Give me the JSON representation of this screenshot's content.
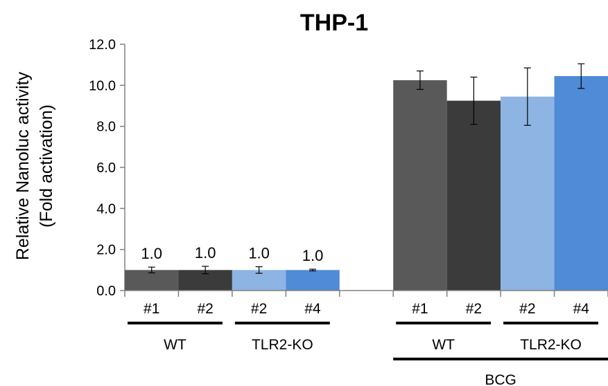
{
  "chart_data": {
    "type": "bar",
    "title": "THP-1",
    "ylabel_lines": [
      "Relative Nanoluc activity",
      "(Fold activation)"
    ],
    "ylim": [
      0,
      12
    ],
    "yticks": [
      "0.0",
      "2.0",
      "4.0",
      "6.0",
      "8.0",
      "10.0",
      "12.0"
    ],
    "grid": false,
    "legend": "none",
    "bars": [
      {
        "label": "#1",
        "value": 1.0,
        "error": 0.14,
        "color": "#595959",
        "data_label": "1.0"
      },
      {
        "label": "#2",
        "value": 1.0,
        "error": 0.18,
        "color": "#3b3b3b",
        "data_label": "1.0"
      },
      {
        "label": "#2",
        "value": 1.0,
        "error": 0.16,
        "color": "#8db4e2",
        "data_label": "1.0"
      },
      {
        "label": "#4",
        "value": 1.0,
        "error": 0.04,
        "color": "#4f8bd6",
        "data_label": "1.0"
      },
      {
        "label": "#1",
        "value": 10.25,
        "error": 0.45,
        "color": "#595959",
        "data_label": ""
      },
      {
        "label": "#2",
        "value": 9.25,
        "error": 1.15,
        "color": "#3b3b3b",
        "data_label": ""
      },
      {
        "label": "#2",
        "value": 9.45,
        "error": 1.4,
        "color": "#8db4e2",
        "data_label": ""
      },
      {
        "label": "#4",
        "value": 10.45,
        "error": 0.6,
        "color": "#4f8bd6",
        "data_label": ""
      }
    ],
    "groups": [
      {
        "label": "WT",
        "bars": [
          0,
          1
        ]
      },
      {
        "label": "TLR2-KO",
        "bars": [
          2,
          3
        ]
      },
      {
        "label": "WT",
        "bars": [
          4,
          5
        ]
      },
      {
        "label": "TLR2-KO",
        "bars": [
          6,
          7
        ]
      }
    ],
    "supergroups": [
      {
        "label": "BCG",
        "bars": [
          4,
          5,
          6,
          7
        ]
      }
    ]
  }
}
